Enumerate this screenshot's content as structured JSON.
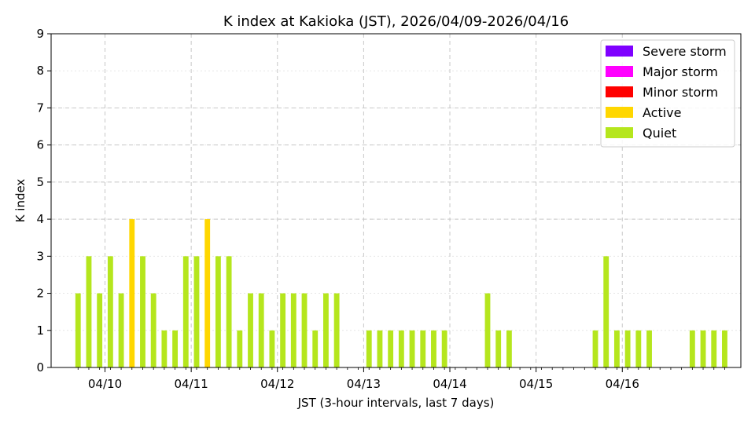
{
  "chart_data": {
    "type": "bar",
    "title": "K index at Kakioka (JST), 2026/04/09-2026/04/16",
    "xlabel": "JST (3-hour intervals, last 7 days)",
    "ylabel": "K index",
    "ylim": [
      0,
      9
    ],
    "yticks": [
      "0",
      "1",
      "2",
      "3",
      "4",
      "5",
      "6",
      "7",
      "8",
      "9"
    ],
    "x_tick_labels": [
      "04/10",
      "04/11",
      "04/12",
      "04/13",
      "04/14",
      "04/15",
      "04/16"
    ],
    "interval_hours": 3,
    "x_start": "2026/04/09 15:00",
    "values": [
      2,
      3,
      2,
      3,
      2,
      4,
      3,
      2,
      1,
      1,
      3,
      3,
      4,
      3,
      3,
      1,
      2,
      2,
      1,
      2,
      2,
      2,
      1,
      2,
      2,
      0,
      0,
      1,
      1,
      1,
      1,
      1,
      1,
      1,
      1,
      0,
      0,
      0,
      2,
      1,
      1,
      0,
      0,
      0,
      0,
      0,
      0,
      0,
      1,
      3,
      1,
      1,
      1,
      1,
      0,
      0,
      0,
      1,
      1,
      1,
      1
    ],
    "legend": [
      {
        "name": "Severe storm",
        "color": "#7f00ff"
      },
      {
        "name": "Major storm",
        "color": "#ff00ff"
      },
      {
        "name": "Minor storm",
        "color": "#ff0000"
      },
      {
        "name": "Active",
        "color": "#ffd700"
      },
      {
        "name": "Quiet",
        "color": "#b5e61d"
      }
    ],
    "legend_position": "top-right",
    "grid": true
  }
}
